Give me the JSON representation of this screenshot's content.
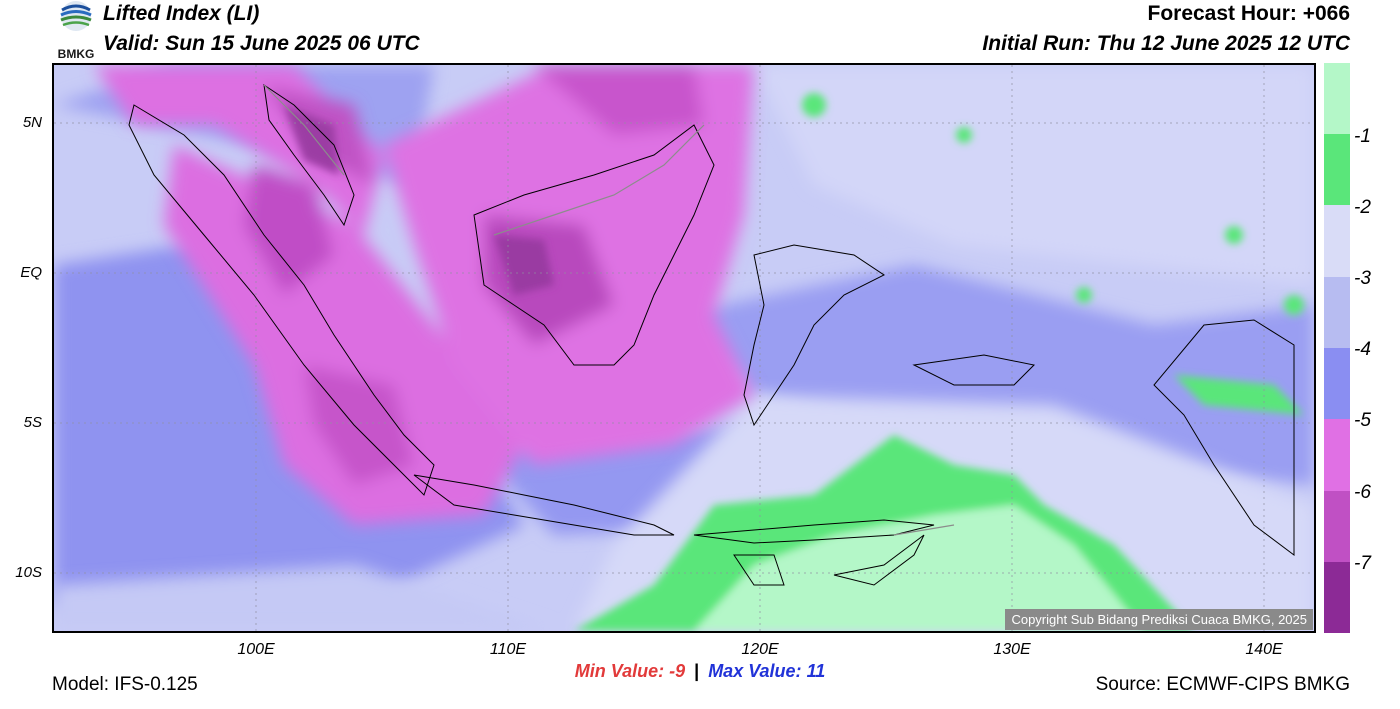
{
  "header": {
    "title": "Lifted Index (LI)",
    "valid": "Valid: Sun 15 June 2025 06 UTC",
    "forecast_hour": "Forecast Hour: +066",
    "initial_run": "Initial Run: Thu 12 June 2025 12 UTC",
    "logo_text": "BMKG"
  },
  "axes": {
    "lat_labels": [
      "5N",
      "EQ",
      "5S",
      "10S"
    ],
    "lon_labels": [
      "100E",
      "110E",
      "120E",
      "130E",
      "140E"
    ]
  },
  "colorbar": {
    "labels": [
      "-1",
      "-2",
      "-3",
      "-4",
      "-5",
      "-6",
      "-7"
    ],
    "colors": [
      "#b4f7c8",
      "#5ae67a",
      "#d9dcf7",
      "#b7bcf1",
      "#8a8ef2",
      "#e070e4",
      "#c050c4",
      "#8c2a96"
    ]
  },
  "stats": {
    "min_label": "Min Value:",
    "min_value": "-9",
    "separator": "|",
    "max_label": "Max Value:",
    "max_value": "11"
  },
  "footer": {
    "model": "Model: IFS-0.125",
    "source": "Source: ECMWF-CIPS BMKG",
    "copyright": "Copyright Sub Bidang Prediksi Cuaca BMKG, 2025"
  }
}
